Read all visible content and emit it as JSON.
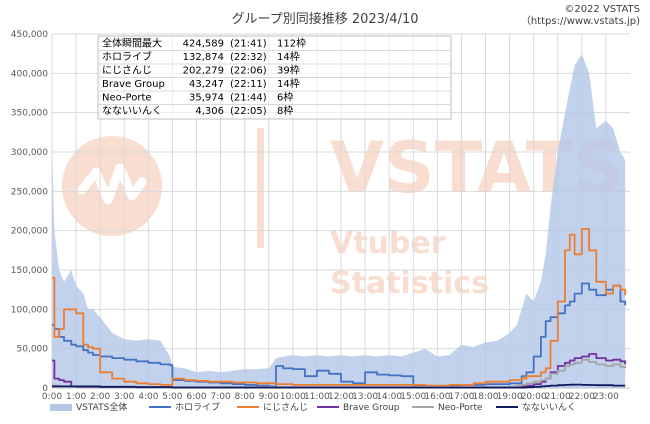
{
  "chart_data": {
    "type": "area",
    "title": "グループ別同接推移 2023/4/10",
    "credit": [
      "©2022 VSTATS",
      "（https://www.vstats.jp)"
    ],
    "watermark": {
      "logo": "VSTATS",
      "tagline": [
        "Vtuber",
        "Statistics"
      ]
    },
    "ylim": [
      0,
      450000
    ],
    "y_ticks": [
      "0",
      "50,000",
      "100,000",
      "150,000",
      "200,000",
      "250,000",
      "300,000",
      "350,000",
      "400,000",
      "450,000"
    ],
    "x_ticks": [
      "0:00",
      "1:00",
      "2:00",
      "3:00",
      "4:00",
      "5:00",
      "6:00",
      "7:00",
      "8:00",
      "9:00",
      "10:00",
      "11:00",
      "12:00",
      "13:00",
      "14:00",
      "15:00",
      "16:00",
      "17:00",
      "18:00",
      "19:00",
      "20:00",
      "21:00",
      "22:00",
      "23:00"
    ],
    "grid": true,
    "legend_position": "bottom",
    "x_hours": [
      0,
      0.1,
      0.3,
      0.5,
      0.8,
      1.0,
      1.3,
      1.5,
      1.7,
      2.0,
      2.5,
      3.0,
      3.5,
      4.0,
      4.5,
      4.9,
      5.0,
      5.5,
      6.0,
      6.5,
      7.0,
      7.5,
      8.0,
      8.5,
      9.0,
      9.3,
      9.6,
      10.0,
      10.5,
      11.0,
      11.5,
      12.0,
      12.5,
      13.0,
      13.5,
      14.0,
      14.5,
      15.0,
      15.5,
      16.0,
      16.5,
      17.0,
      17.5,
      18.0,
      18.5,
      19.0,
      19.3,
      19.5,
      19.7,
      20.0,
      20.3,
      20.5,
      20.7,
      21.0,
      21.3,
      21.5,
      21.7,
      22.0,
      22.3,
      22.6,
      23.0,
      23.3,
      23.6,
      23.8
    ],
    "series": [
      {
        "name": "VSTATS全体",
        "color": "#b4c7e7",
        "kind": "area",
        "values": [
          300000,
          200000,
          150000,
          135000,
          150000,
          130000,
          120000,
          100000,
          100000,
          90000,
          70000,
          62000,
          60000,
          62000,
          60000,
          40000,
          27000,
          25000,
          20000,
          22000,
          20000,
          22000,
          24000,
          24000,
          25000,
          38000,
          40000,
          42000,
          40000,
          42000,
          40000,
          42000,
          40000,
          42000,
          40000,
          42000,
          40000,
          45000,
          50000,
          40000,
          42000,
          55000,
          52000,
          58000,
          60000,
          70000,
          80000,
          100000,
          120000,
          110000,
          135000,
          170000,
          230000,
          300000,
          350000,
          380000,
          410000,
          424589,
          400000,
          330000,
          340000,
          330000,
          300000,
          290000
        ]
      },
      {
        "name": "ホロライブ",
        "color": "#4472c4",
        "kind": "line",
        "values": [
          80000,
          75000,
          65000,
          60000,
          55000,
          53000,
          48000,
          45000,
          42000,
          40000,
          38000,
          36000,
          34000,
          32000,
          30000,
          29000,
          10000,
          9000,
          8000,
          7000,
          6000,
          5000,
          4000,
          3000,
          2000,
          28000,
          25000,
          24000,
          15000,
          22000,
          18000,
          8000,
          6000,
          20000,
          17000,
          16000,
          15000,
          3000,
          2000,
          2000,
          3000,
          4000,
          4000,
          5000,
          5000,
          6000,
          6000,
          15000,
          20000,
          40000,
          65000,
          85000,
          90000,
          95000,
          105000,
          110000,
          120000,
          132874,
          125000,
          118000,
          125000,
          130000,
          110000,
          105000
        ]
      },
      {
        "name": "にじさんじ",
        "color": "#ed7d31",
        "kind": "line",
        "values": [
          140000,
          65000,
          75000,
          100000,
          100000,
          95000,
          55000,
          52000,
          50000,
          20000,
          12000,
          8000,
          6000,
          5000,
          4000,
          4000,
          12000,
          10000,
          9000,
          8000,
          8000,
          7000,
          7000,
          6000,
          6000,
          5000,
          5000,
          4000,
          4000,
          4000,
          4000,
          4000,
          4000,
          4000,
          4000,
          4000,
          4000,
          4000,
          3000,
          3000,
          4000,
          4000,
          6000,
          8000,
          8000,
          10000,
          10000,
          12000,
          15000,
          15000,
          20000,
          25000,
          60000,
          110000,
          175000,
          195000,
          170000,
          202279,
          175000,
          135000,
          120000,
          130000,
          125000,
          118000
        ]
      },
      {
        "name": "Brave Group",
        "color": "#7030a0",
        "kind": "line",
        "values": [
          35000,
          12000,
          10000,
          8000,
          2000,
          1500,
          1000,
          1000,
          1000,
          1000,
          1000,
          1000,
          1000,
          1000,
          1000,
          1000,
          1000,
          1000,
          1000,
          1000,
          1000,
          1000,
          1000,
          1000,
          1000,
          1000,
          1000,
          1000,
          1000,
          1000,
          1000,
          1000,
          1000,
          1000,
          1000,
          1000,
          1000,
          1000,
          1000,
          1000,
          1000,
          1000,
          1000,
          1000,
          1000,
          1000,
          1000,
          2000,
          3000,
          5000,
          8000,
          12000,
          20000,
          28000,
          32000,
          35000,
          38000,
          40000,
          43247,
          38000,
          35000,
          36000,
          34000,
          30000
        ]
      },
      {
        "name": "Neo-Porte",
        "color": "#a5a5a5",
        "kind": "line",
        "values": [
          3000,
          3000,
          2000,
          2000,
          2000,
          2000,
          1500,
          1500,
          1500,
          1000,
          1000,
          1000,
          1000,
          1000,
          1000,
          1000,
          1000,
          1000,
          1000,
          1000,
          1000,
          1000,
          1000,
          1000,
          1000,
          1000,
          1000,
          1000,
          1000,
          1000,
          1000,
          1000,
          1000,
          1000,
          1000,
          1000,
          1000,
          1000,
          1000,
          1000,
          1000,
          1000,
          1000,
          1000,
          1000,
          2000,
          3000,
          4000,
          6000,
          8000,
          10000,
          12000,
          18000,
          22000,
          28000,
          30000,
          32000,
          35974,
          33000,
          30000,
          28000,
          30000,
          27000,
          25000
        ]
      },
      {
        "name": "なないいんく",
        "color": "#0d1b5e",
        "kind": "line",
        "values": [
          2000,
          2000,
          2000,
          2000,
          2000,
          2000,
          2000,
          2000,
          2000,
          1500,
          1500,
          1500,
          1000,
          1000,
          1000,
          1000,
          500,
          500,
          500,
          500,
          500,
          500,
          500,
          500,
          500,
          500,
          500,
          500,
          500,
          500,
          500,
          500,
          500,
          500,
          500,
          500,
          500,
          500,
          500,
          500,
          500,
          500,
          500,
          500,
          500,
          500,
          500,
          500,
          1000,
          1500,
          2000,
          2500,
          3000,
          3500,
          4000,
          4200,
          4306,
          4000,
          3800,
          3500,
          3500,
          3000,
          3000,
          3000
        ]
      }
    ],
    "info_table": [
      [
        "全体瞬間最大",
        "424,589",
        "(21:41)",
        "112枠"
      ],
      [
        "ホロライブ",
        "132,874",
        "(22:32)",
        "14枠"
      ],
      [
        "にじさんじ",
        "202,279",
        "(22:06)",
        "39枠"
      ],
      [
        "Brave Group",
        "43,247",
        "(22:11)",
        "14枠"
      ],
      [
        "Neo-Porte",
        "35,974",
        "(21:44)",
        "6枠"
      ],
      [
        "なないいんく",
        "4,306",
        "(22:05)",
        "8枠"
      ]
    ]
  }
}
